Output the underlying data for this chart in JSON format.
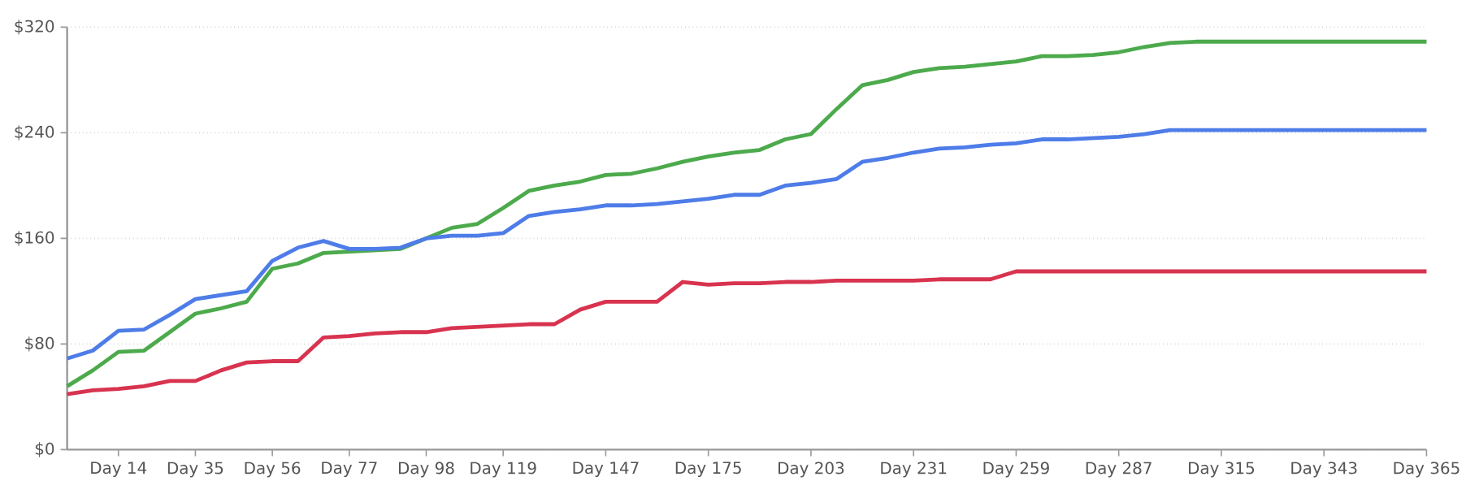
{
  "chart_data": {
    "type": "line",
    "categories": [
      null,
      null,
      "Day 14",
      null,
      null,
      "Day 35",
      null,
      null,
      "Day 56",
      null,
      null,
      "Day 77",
      null,
      null,
      "Day 98",
      null,
      null,
      "Day 119",
      null,
      null,
      null,
      "Day 147",
      null,
      null,
      null,
      "Day 175",
      null,
      null,
      null,
      "Day 203",
      null,
      null,
      null,
      "Day 231",
      null,
      null,
      null,
      "Day 259",
      null,
      null,
      null,
      "Day 287",
      null,
      null,
      null,
      "Day 315",
      null,
      null,
      null,
      "Day 343",
      null,
      null,
      null,
      "Day 365"
    ],
    "series": [
      {
        "color": "#4caa4c",
        "values": [
          48,
          60,
          74,
          75,
          89,
          103,
          107,
          112,
          137,
          141,
          149,
          150,
          151,
          152,
          160,
          168,
          171,
          183,
          196,
          200,
          203,
          208,
          209,
          213,
          218,
          222,
          225,
          227,
          235,
          239,
          258,
          276,
          280,
          286,
          289,
          290,
          292,
          294,
          298,
          298,
          299,
          301,
          305,
          308,
          309,
          309,
          309,
          309,
          309,
          309,
          309,
          309,
          309,
          309
        ]
      },
      {
        "color": "#4e7ce8",
        "values": [
          69,
          75,
          90,
          91,
          102,
          114,
          117,
          120,
          143,
          153,
          158,
          152,
          152,
          153,
          160,
          162,
          162,
          164,
          177,
          180,
          182,
          185,
          185,
          186,
          188,
          190,
          193,
          193,
          200,
          202,
          205,
          218,
          221,
          225,
          228,
          229,
          231,
          232,
          235,
          235,
          236,
          237,
          239,
          242,
          242,
          242,
          242,
          242,
          242,
          242,
          242,
          242,
          242,
          242
        ]
      },
      {
        "color": "#d8334f",
        "values": [
          42,
          45,
          46,
          48,
          52,
          52,
          60,
          66,
          67,
          67,
          85,
          86,
          88,
          89,
          89,
          92,
          93,
          94,
          95,
          95,
          106,
          112,
          112,
          112,
          127,
          125,
          126,
          126,
          127,
          127,
          128,
          128,
          128,
          128,
          129,
          129,
          129,
          135,
          135,
          135,
          135,
          135,
          135,
          135,
          135,
          135,
          135,
          135,
          135,
          135,
          135,
          135,
          135,
          135
        ]
      }
    ],
    "ylim": [
      0,
      320
    ],
    "yticks": [
      {
        "value": 0,
        "label": "$0"
      },
      {
        "value": 80,
        "label": "$80"
      },
      {
        "value": 160,
        "label": "$160"
      },
      {
        "value": 240,
        "label": "$240"
      },
      {
        "value": 320,
        "label": "$320"
      }
    ],
    "grid": "y",
    "marker": "none",
    "line_style": "solid"
  }
}
